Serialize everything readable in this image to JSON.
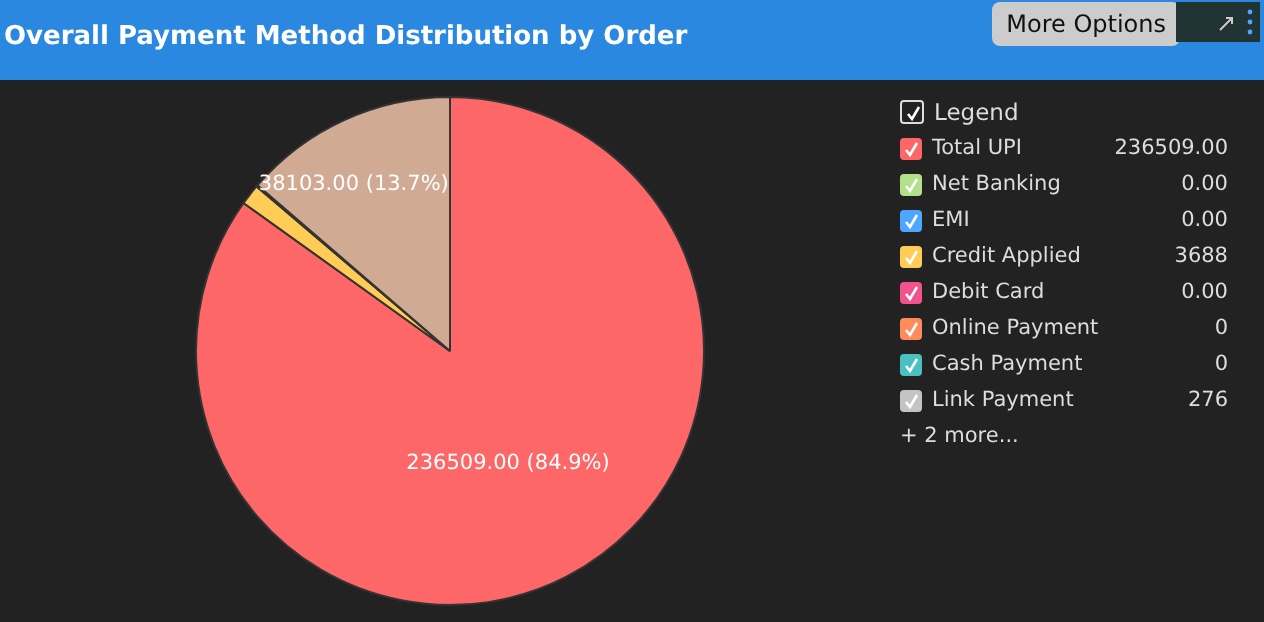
{
  "chart_data": {
    "type": "pie",
    "title": "Overall Payment Method Distribution by Order",
    "legend_title": "Legend",
    "legend": "right",
    "categories": [
      "Total UPI",
      "Net Banking",
      "EMI",
      "Credit Applied",
      "Debit Card",
      "Online Payment",
      "Cash Payment",
      "Link Payment",
      null
    ],
    "values": [
      236509,
      0,
      0,
      3688,
      0,
      0,
      0,
      276,
      38103
    ],
    "colors": [
      "#fe6767",
      "#b3e08a",
      "#4ea7ff",
      "#ffcd56",
      "#f2528d",
      "#ff8a5b",
      "#4bc0c0",
      "#c4c4c4",
      "#d1aa94"
    ],
    "value_labels": [
      "236509.00",
      "0.00",
      "0.00",
      "3688",
      "0.00",
      "0",
      "0",
      "276",
      null
    ],
    "annotations": [
      "236509.00 (84.9%)",
      "38103.00 (13.7%)",
      "+ 2 more...",
      "More Options"
    ]
  }
}
